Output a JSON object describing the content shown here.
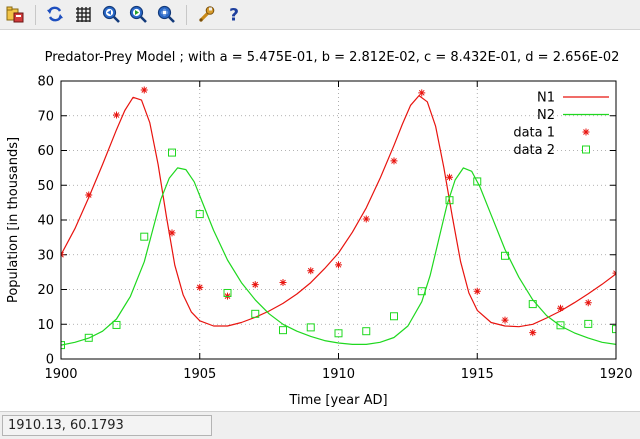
{
  "toolbar": {
    "items": [
      {
        "name": "export-icon"
      },
      {
        "name": "replot-icon"
      },
      {
        "name": "grid-icon"
      },
      {
        "name": "zoom-previous-icon"
      },
      {
        "name": "zoom-next-icon"
      },
      {
        "name": "autoscale-icon"
      },
      {
        "name": "settings-wrench-icon"
      },
      {
        "name": "help-icon"
      }
    ]
  },
  "chart_data": {
    "type": "line",
    "title": "Predator-Prey Model ;  with  a = 5.475E-01, b = 2.812E-02, c = 8.432E-01, d = 2.656E-02",
    "xlabel": "Time [year AD]",
    "ylabel": "Population [in thousands]",
    "xlim": [
      1900,
      1920
    ],
    "ylim": [
      0,
      80
    ],
    "xticks": [
      1900,
      1905,
      1910,
      1915,
      1920
    ],
    "yticks": [
      0,
      10,
      20,
      30,
      40,
      50,
      60,
      70,
      80
    ],
    "grid": true,
    "legend_position": "top-right",
    "colors": {
      "n1": "#e8140f",
      "n2": "#1fd81f"
    },
    "series": [
      {
        "name": "N1",
        "kind": "line",
        "color": "#e8140f",
        "x": [
          1900,
          1900.5,
          1901,
          1901.5,
          1902,
          1902.3,
          1902.6,
          1902.9,
          1903.2,
          1903.5,
          1903.8,
          1904.1,
          1904.4,
          1904.7,
          1905,
          1905.5,
          1906,
          1906.5,
          1907,
          1907.5,
          1908,
          1908.5,
          1909,
          1909.5,
          1910,
          1910.5,
          1911,
          1911.5,
          1912,
          1912.3,
          1912.6,
          1912.9,
          1913.2,
          1913.5,
          1913.8,
          1914.1,
          1914.4,
          1914.7,
          1915,
          1915.5,
          1916,
          1916.5,
          1917,
          1917.5,
          1918,
          1918.5,
          1919,
          1919.5,
          1920
        ],
        "y": [
          30,
          37.5,
          46.5,
          56,
          66,
          71.5,
          75.3,
          74.5,
          68,
          56,
          41,
          27,
          18.5,
          13.5,
          11,
          9.5,
          9.5,
          10.5,
          12,
          13.8,
          16,
          18.7,
          22,
          26,
          30.5,
          36.5,
          43.5,
          52,
          61.5,
          67.5,
          73,
          75.8,
          74,
          67,
          55,
          41,
          28,
          19,
          14,
          10.5,
          9.5,
          9.3,
          10,
          11.8,
          13.8,
          16.2,
          18.8,
          21.5,
          24.5
        ]
      },
      {
        "name": "N2",
        "kind": "line",
        "color": "#1fd81f",
        "x": [
          1900,
          1900.5,
          1901,
          1901.5,
          1902,
          1902.5,
          1903,
          1903.3,
          1903.6,
          1903.9,
          1904.2,
          1904.5,
          1904.8,
          1905.1,
          1905.5,
          1906,
          1906.5,
          1907,
          1907.5,
          1908,
          1908.5,
          1909,
          1909.5,
          1910,
          1910.5,
          1911,
          1911.5,
          1912,
          1912.5,
          1913,
          1913.3,
          1913.6,
          1913.9,
          1914.2,
          1914.5,
          1914.8,
          1915.1,
          1915.5,
          1916,
          1916.5,
          1917,
          1917.5,
          1918,
          1918.5,
          1919,
          1919.5,
          1920
        ],
        "y": [
          4,
          4.8,
          6,
          8,
          11.5,
          18,
          28,
          37,
          46,
          52,
          55,
          54.5,
          51,
          45,
          37,
          28.5,
          22,
          17,
          13,
          10,
          8,
          6.5,
          5.3,
          4.6,
          4.2,
          4.2,
          4.8,
          6.2,
          9.5,
          16.5,
          24,
          34,
          44,
          51.5,
          55,
          54,
          49.5,
          41.5,
          31.5,
          23.5,
          17,
          12.5,
          9.5,
          7.5,
          6,
          4.8,
          4.2
        ]
      },
      {
        "name": "data 1",
        "kind": "scatter",
        "marker": "star",
        "color": "#e8140f",
        "x": [
          1900,
          1901,
          1902,
          1903,
          1904,
          1905,
          1906,
          1907,
          1908,
          1909,
          1910,
          1911,
          1912,
          1913,
          1914,
          1915,
          1916,
          1917,
          1918,
          1919,
          1920
        ],
        "y": [
          30,
          47.2,
          70.2,
          77.4,
          36.3,
          20.6,
          18.1,
          21.4,
          22,
          25.4,
          27.1,
          40.3,
          57,
          76.6,
          52.3,
          19.5,
          11.2,
          7.6,
          14.6,
          16.2,
          24.7
        ]
      },
      {
        "name": "data 2",
        "kind": "scatter",
        "marker": "square",
        "color": "#1fd81f",
        "x": [
          1900,
          1901,
          1902,
          1903,
          1904,
          1905,
          1906,
          1907,
          1908,
          1909,
          1910,
          1911,
          1912,
          1913,
          1914,
          1915,
          1916,
          1917,
          1918,
          1919,
          1920
        ],
        "y": [
          4,
          6.1,
          9.8,
          35.2,
          59.4,
          41.7,
          19,
          13,
          8.3,
          9.1,
          7.4,
          8,
          12.3,
          19.5,
          45.7,
          51.1,
          29.7,
          15.8,
          9.7,
          10.1,
          8.6
        ]
      }
    ]
  },
  "status": {
    "cursor_readout": "1910.13,  60.1793"
  }
}
